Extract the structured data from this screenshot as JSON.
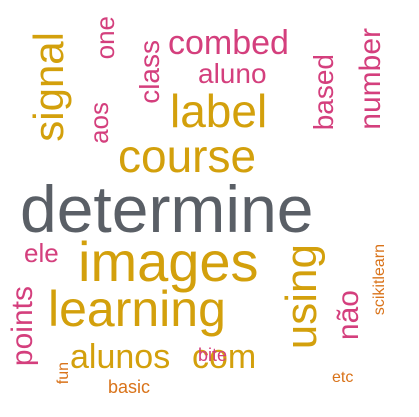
{
  "word_cloud": {
    "colors": {
      "gray": "#5a5f66",
      "gold": "#d3a00c",
      "pink": "#d43f7d",
      "orange": "#d9731a"
    },
    "words": {
      "determine": "determine",
      "images": "images",
      "learning": "learning",
      "course": "course",
      "label": "label",
      "signal": "signal",
      "using": "using",
      "combed": "combed",
      "aluno": "aluno",
      "class": "class",
      "one": "one",
      "aos": "aos",
      "based": "based",
      "number": "number",
      "ele": "ele",
      "points": "points",
      "alunos": "alunos",
      "com": "com",
      "nao": "não",
      "scikitlearn": "scikitlearn",
      "bite": "bite",
      "basic": "basic",
      "fun": "fun",
      "etc": "etc"
    }
  }
}
